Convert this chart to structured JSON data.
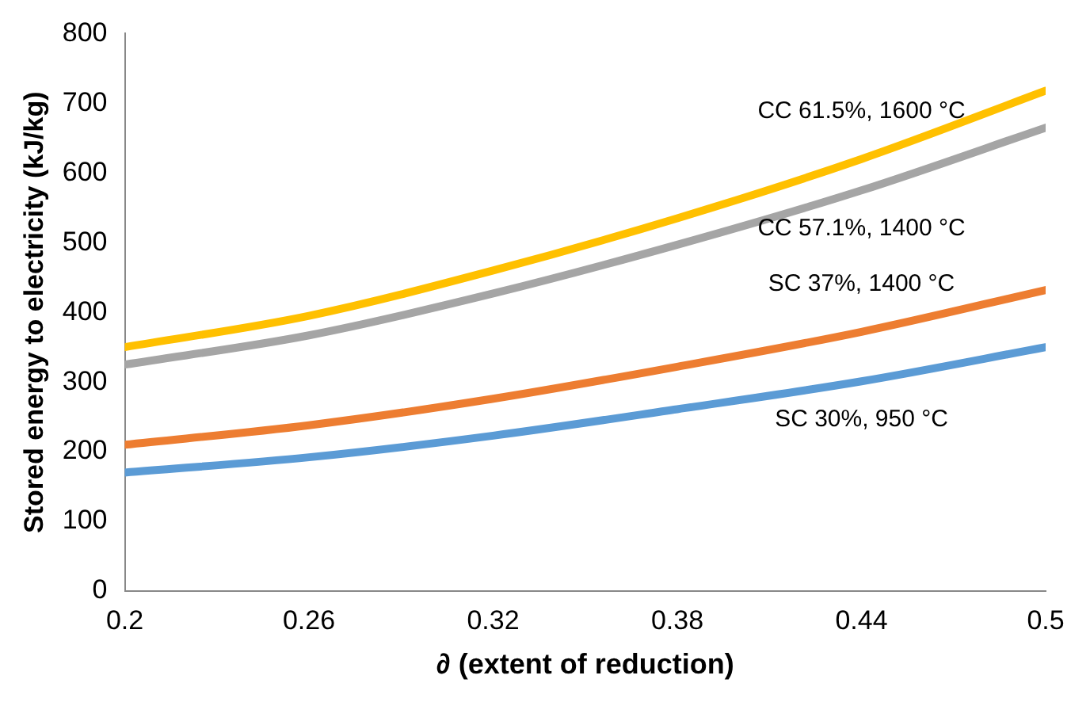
{
  "chart_data": {
    "type": "line",
    "xlabel": "∂ (extent of reduction)",
    "ylabel": "Stored energy to electricity (kJ/kg)",
    "x": [
      0.2,
      0.26,
      0.32,
      0.38,
      0.44,
      0.5
    ],
    "series": [
      {
        "name": "CC 61.5%, 1600 °C",
        "color": "#ffc000",
        "values": [
          350,
          395,
          460,
          535,
          620,
          718
        ]
      },
      {
        "name": "CC 57.1%, 1400 °C",
        "color": "#a5a5a5",
        "values": [
          325,
          367,
          427,
          497,
          575,
          665
        ]
      },
      {
        "name": "SC 37%, 1400 °C",
        "color": "#ed7d31",
        "values": [
          210,
          238,
          276,
          322,
          372,
          432
        ]
      },
      {
        "name": "SC 30%, 950 °C",
        "color": "#5b9bd5",
        "values": [
          170,
          192,
          223,
          261,
          301,
          350
        ]
      }
    ],
    "xlim": [
      0.2,
      0.5
    ],
    "xticks": [
      0.2,
      0.26,
      0.32,
      0.38,
      0.44,
      0.5
    ],
    "ylim": [
      0,
      800
    ],
    "yticks": [
      0,
      100,
      200,
      300,
      400,
      500,
      600,
      700,
      800
    ],
    "grid": false,
    "legend": false,
    "marker": "none",
    "line_style": "solid"
  }
}
